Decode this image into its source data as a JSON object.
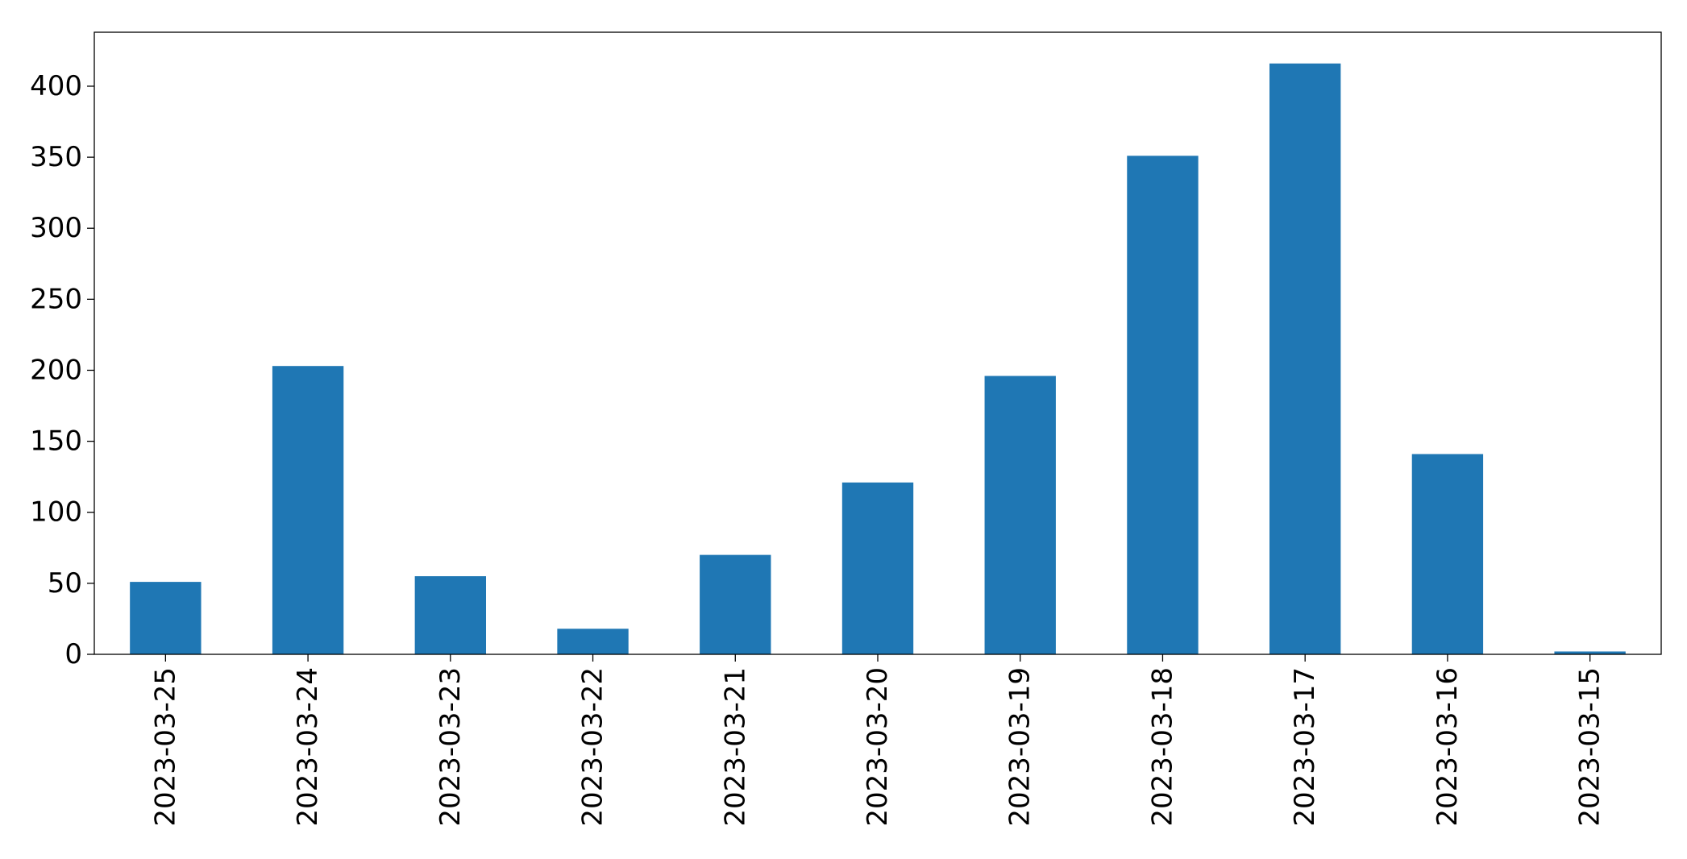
{
  "chart_data": {
    "type": "bar",
    "title": "",
    "xlabel": "",
    "ylabel": "",
    "categories": [
      "2023-03-25",
      "2023-03-24",
      "2023-03-23",
      "2023-03-22",
      "2023-03-21",
      "2023-03-20",
      "2023-03-19",
      "2023-03-18",
      "2023-03-17",
      "2023-03-16",
      "2023-03-15"
    ],
    "values": [
      51,
      203,
      55,
      18,
      70,
      121,
      196,
      351,
      416,
      141,
      2
    ],
    "ylim": [
      0,
      438
    ],
    "yticks": [
      0,
      50,
      100,
      150,
      200,
      250,
      300,
      350,
      400
    ],
    "yticklabels": [
      "0",
      "50",
      "100",
      "150",
      "200",
      "250",
      "300",
      "350",
      "400"
    ],
    "bar_color": "#1f77b4",
    "grid": false,
    "legend": "none"
  }
}
